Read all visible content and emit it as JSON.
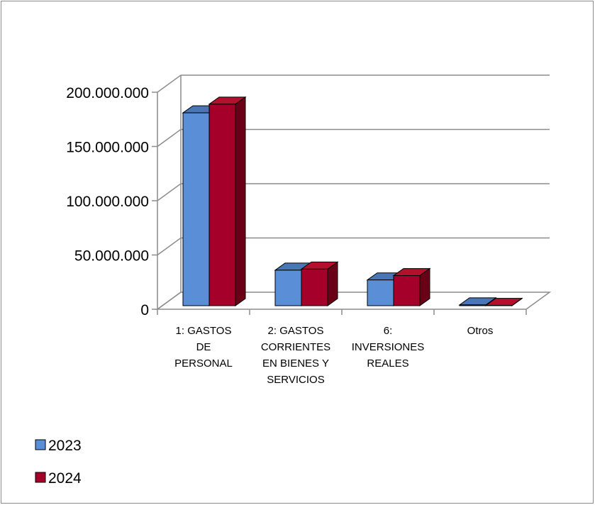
{
  "chart_data": {
    "type": "bar",
    "three_d": true,
    "categories": [
      [
        "1: GASTOS",
        "DE",
        "PERSONAL"
      ],
      [
        "2: GASTOS",
        "CORRIENTES",
        "EN BIENES Y",
        "SERVICIOS"
      ],
      [
        "6:",
        "INVERSIONES",
        "REALES"
      ],
      [
        "Otros"
      ]
    ],
    "series": [
      {
        "name": "2023",
        "values": [
          181000000,
          36000000,
          27000000,
          4000000
        ],
        "color": "#5a8fd8",
        "top_color": "#4a76b5",
        "side_color": "#2f5c9a"
      },
      {
        "name": "2024",
        "values": [
          189000000,
          37000000,
          31000000,
          3500000
        ],
        "color": "#a5002a",
        "top_color": "#b3102e",
        "side_color": "#6a0018"
      }
    ],
    "yticks": [
      "0",
      "50.000.000",
      "100.000.000",
      "150.000.000",
      "200.000.000"
    ],
    "ylim": [
      0,
      200000000
    ],
    "grid": true,
    "legend_position": "bottom-left"
  }
}
